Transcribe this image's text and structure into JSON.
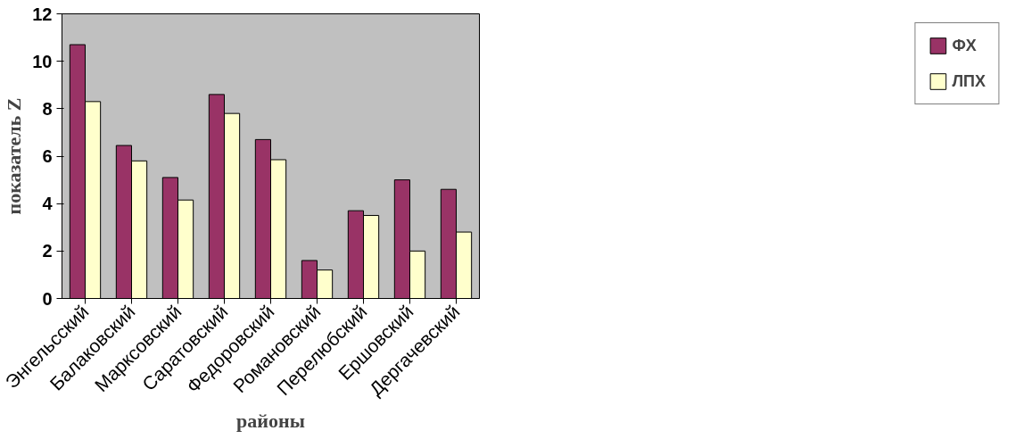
{
  "chart_data": {
    "type": "bar",
    "xlabel": "районы",
    "ylabel": "показатель Z",
    "categories": [
      "Энгельсский",
      "Балаковский",
      "Марксовский",
      "Саратовский",
      "Федоровский",
      "Романовский",
      "Перелюбский",
      "Ершовский",
      "Дергачевский"
    ],
    "series": [
      {
        "name": "ФХ",
        "color": "#993366",
        "values": [
          10.7,
          6.45,
          5.1,
          8.6,
          6.7,
          1.6,
          3.7,
          5.0,
          4.6
        ]
      },
      {
        "name": "ЛПХ",
        "color": "#ffffcc",
        "values": [
          8.3,
          5.8,
          4.15,
          7.8,
          5.85,
          1.2,
          3.5,
          2.0,
          2.8
        ]
      }
    ],
    "ylim": [
      0,
      12
    ],
    "yticks": [
      0,
      2,
      4,
      6,
      8,
      10,
      12
    ],
    "grid": false,
    "legend": "right"
  }
}
